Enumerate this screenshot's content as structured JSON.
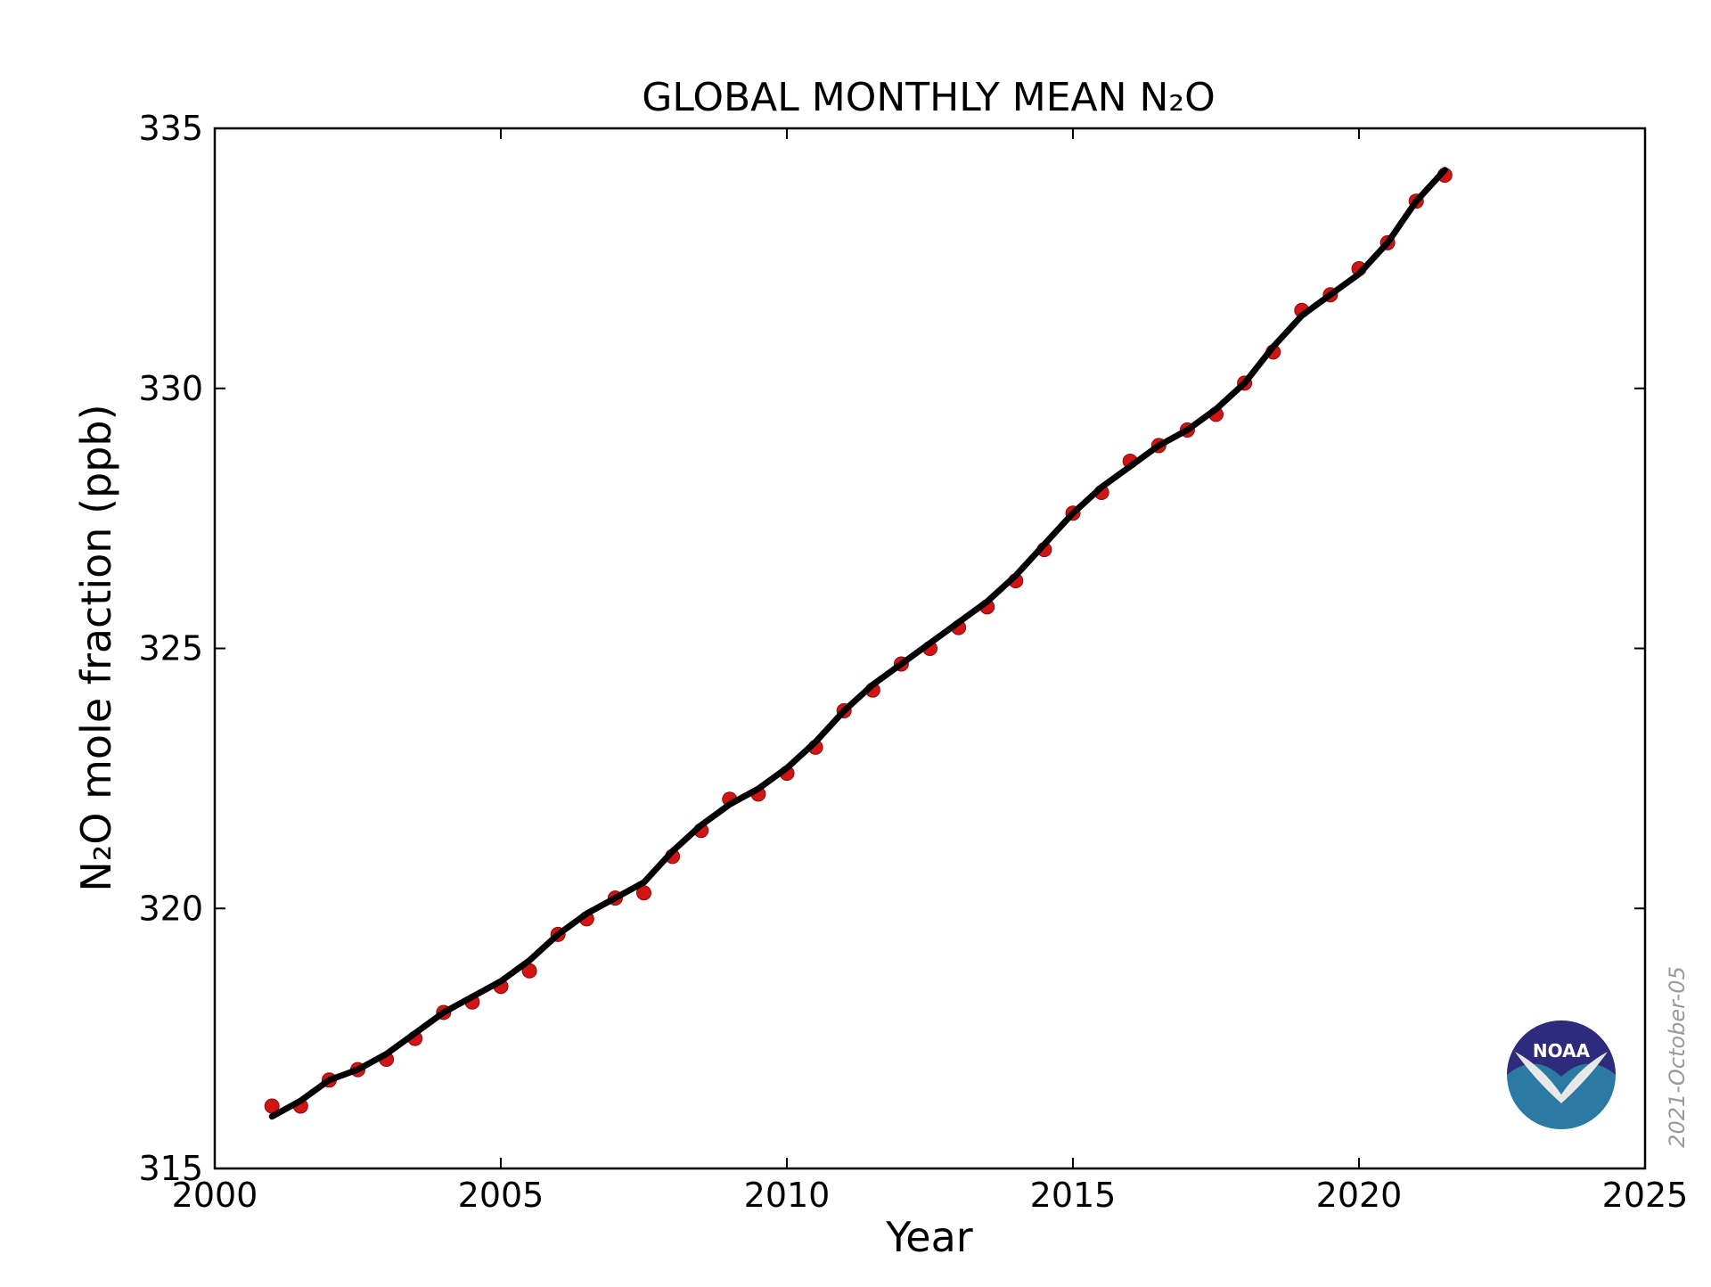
{
  "chart_data": {
    "type": "scatter",
    "title": "GLOBAL MONTHLY MEAN N₂O",
    "xlabel": "Year",
    "ylabel": "N₂O mole fraction (ppb)",
    "xlim": [
      2000,
      2025
    ],
    "ylim": [
      315,
      335
    ],
    "x_ticks": [
      "2000",
      "2005",
      "2010",
      "2015",
      "2020",
      "2025"
    ],
    "y_ticks": [
      "315",
      "320",
      "325",
      "330",
      "335"
    ],
    "grid": false,
    "legend": "none",
    "series": [
      {
        "kind": "monthly-points",
        "color": "#d21414",
        "x": [
          2001.0,
          2001.5,
          2002.0,
          2002.5,
          2003.0,
          2003.5,
          2004.0,
          2004.5,
          2005.0,
          2005.5,
          2006.0,
          2006.5,
          2007.0,
          2007.5,
          2008.0,
          2008.5,
          2009.0,
          2009.5,
          2010.0,
          2010.5,
          2011.0,
          2011.5,
          2012.0,
          2012.5,
          2013.0,
          2013.5,
          2014.0,
          2014.5,
          2015.0,
          2015.5,
          2016.0,
          2016.5,
          2017.0,
          2017.5,
          2018.0,
          2018.5,
          2019.0,
          2019.5,
          2020.0,
          2020.5,
          2021.0,
          2021.5
        ],
        "y": [
          316.2,
          316.2,
          316.7,
          316.9,
          317.1,
          317.5,
          318.0,
          318.2,
          318.5,
          318.8,
          319.5,
          319.8,
          320.2,
          320.3,
          321.0,
          321.5,
          322.1,
          322.2,
          322.6,
          323.1,
          323.8,
          324.2,
          324.7,
          325.0,
          325.4,
          325.8,
          326.3,
          326.9,
          327.6,
          328.0,
          328.6,
          328.9,
          329.2,
          329.5,
          330.1,
          330.7,
          331.5,
          331.8,
          332.3,
          332.8,
          333.6,
          334.1
        ]
      },
      {
        "kind": "trend-line",
        "color": "#000000",
        "x": [
          2001.0,
          2001.5,
          2002.0,
          2002.5,
          2003.0,
          2003.5,
          2004.0,
          2004.5,
          2005.0,
          2005.5,
          2006.0,
          2006.5,
          2007.0,
          2007.5,
          2008.0,
          2008.5,
          2009.0,
          2009.5,
          2010.0,
          2010.5,
          2011.0,
          2011.5,
          2012.0,
          2012.5,
          2013.0,
          2013.5,
          2014.0,
          2014.5,
          2015.0,
          2015.5,
          2016.0,
          2016.5,
          2017.0,
          2017.5,
          2018.0,
          2018.5,
          2019.0,
          2019.5,
          2020.0,
          2020.5,
          2021.0,
          2021.5
        ],
        "y": [
          316.0,
          316.3,
          316.7,
          316.9,
          317.2,
          317.6,
          318.0,
          318.3,
          318.6,
          319.0,
          319.5,
          319.9,
          320.2,
          320.5,
          321.1,
          321.6,
          322.0,
          322.3,
          322.7,
          323.2,
          323.8,
          324.3,
          324.7,
          325.1,
          325.5,
          325.9,
          326.4,
          327.0,
          327.6,
          328.1,
          328.5,
          328.9,
          329.2,
          329.6,
          330.1,
          330.8,
          331.4,
          331.8,
          332.2,
          332.8,
          333.6,
          334.2
        ]
      }
    ]
  },
  "logo_text": "NOAA",
  "date_stamp": "2021-October-05"
}
